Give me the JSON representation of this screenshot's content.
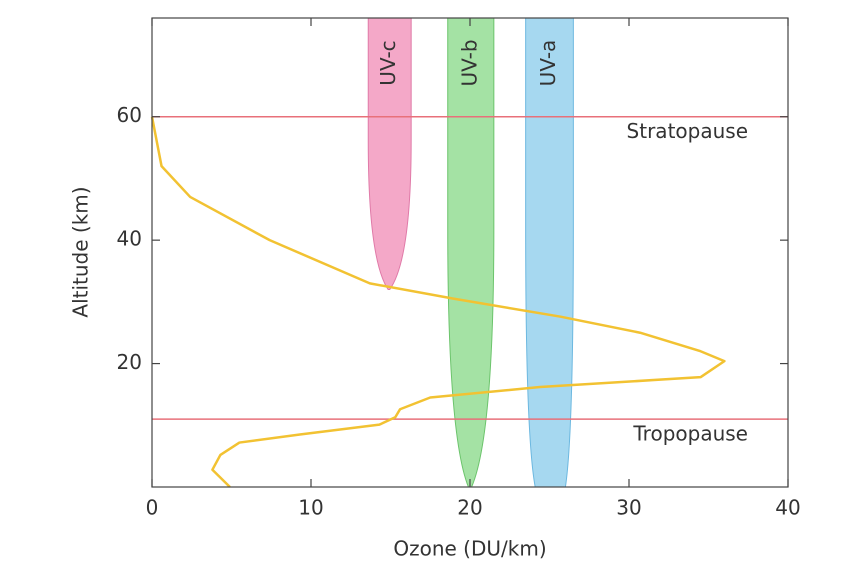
{
  "chart_data": {
    "type": "line",
    "xlabel": "Ozone (DU/km)",
    "ylabel": "Altitude (km)",
    "xlim": [
      0,
      40
    ],
    "xticks": [
      0,
      10,
      20,
      30,
      40
    ],
    "ylim": [
      0,
      76
    ],
    "yticks": [
      20,
      40,
      60
    ],
    "curve": {
      "color": "#f2c232",
      "x": [
        0,
        0.6,
        2.4,
        7.4,
        13.7,
        19,
        25.7,
        30.7,
        34.5,
        36,
        34.5,
        24.4,
        17.5,
        15.6,
        15.3,
        14.3,
        9.3,
        5.5,
        4.3,
        3.8,
        4.9
      ],
      "y": [
        60,
        52,
        47,
        40,
        33,
        30.5,
        27.6,
        25,
        22,
        20.4,
        17.8,
        16.2,
        14.5,
        12.6,
        11.3,
        10.1,
        8.5,
        7.2,
        5.2,
        2.8,
        0
      ]
    },
    "hlines": [
      {
        "value": 60,
        "label": "Stratopause",
        "color": "#e8707a"
      },
      {
        "value": 11,
        "label": "Tropopause",
        "color": "#e8707a"
      }
    ],
    "bands": [
      {
        "label": "UV-c",
        "color": "#f4a8c8",
        "edge": "#e07aa8",
        "top_range": [
          13.6,
          16.3
        ],
        "bottom_range": [
          14.85,
          14.95
        ],
        "bottom": 32
      },
      {
        "label": "UV-b",
        "color": "#a4e2a4",
        "edge": "#6cc46c",
        "top_range": [
          18.6,
          21.5
        ],
        "bottom_range": [
          19.9,
          20.1
        ],
        "bottom": 0
      },
      {
        "label": "UV-a",
        "color": "#a6d8f0",
        "edge": "#6cb8e0",
        "top_range": [
          23.5,
          26.5
        ],
        "bottom_range": [
          24.1,
          26
        ],
        "bottom": 0
      }
    ]
  }
}
